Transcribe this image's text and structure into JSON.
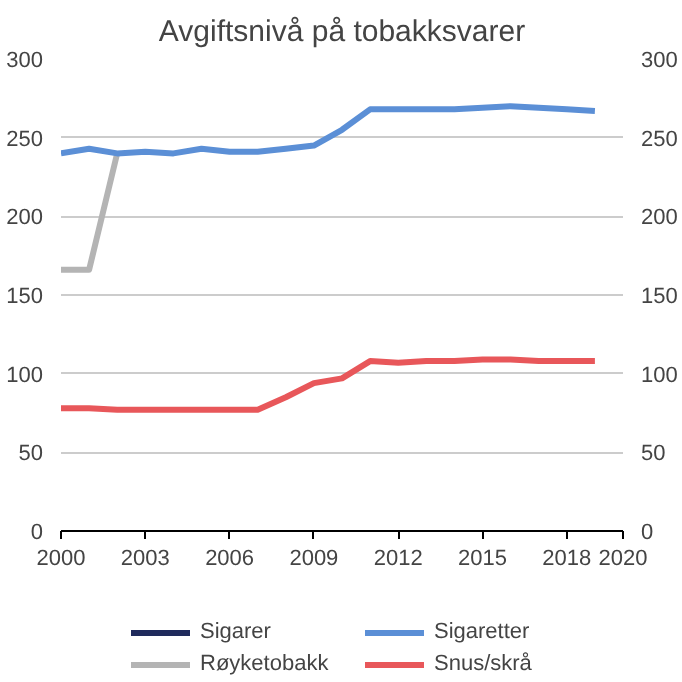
{
  "chart_data": {
    "type": "line",
    "title": "Avgiftsnivå på tobakksvarer",
    "x": [
      2000,
      2001,
      2002,
      2003,
      2004,
      2005,
      2006,
      2007,
      2008,
      2009,
      2010,
      2011,
      2012,
      2013,
      2014,
      2015,
      2016,
      2017,
      2018,
      2019
    ],
    "series": [
      {
        "name": "Sigarer",
        "color": "#1f2a5c",
        "values": [
          null,
          null,
          null,
          null,
          null,
          null,
          null,
          null,
          null,
          null,
          null,
          null,
          null,
          null,
          null,
          null,
          null,
          null,
          null,
          null
        ]
      },
      {
        "name": "Røyketobakk",
        "color": "#b4b4b4",
        "values": [
          166,
          166,
          240,
          null,
          null,
          null,
          null,
          null,
          null,
          null,
          null,
          null,
          null,
          null,
          null,
          null,
          null,
          null,
          null,
          null
        ]
      },
      {
        "name": "Sigaretter",
        "color": "#5b8fd6",
        "values": [
          240,
          243,
          240,
          241,
          240,
          243,
          241,
          241,
          243,
          245,
          255,
          268,
          268,
          268,
          268,
          269,
          270,
          269,
          268,
          267
        ]
      },
      {
        "name": "Snus/skrå",
        "color": "#e8575a",
        "values": [
          78,
          78,
          77,
          77,
          77,
          77,
          77,
          77,
          85,
          94,
          97,
          108,
          107,
          108,
          108,
          109,
          109,
          108,
          108,
          108
        ]
      }
    ],
    "xlim": [
      2000,
      2020
    ],
    "xticks": [
      2000,
      2003,
      2006,
      2009,
      2012,
      2015,
      2018,
      2020
    ],
    "ylim": [
      0,
      300
    ],
    "yticks": [
      0,
      50,
      100,
      150,
      200,
      250,
      300
    ],
    "y2lim": [
      0,
      300
    ],
    "y2ticks": [
      0,
      50,
      100,
      150,
      200,
      250,
      300
    ],
    "grid": "y",
    "legend": "bottom",
    "marker": "none",
    "line_style": "solid"
  }
}
